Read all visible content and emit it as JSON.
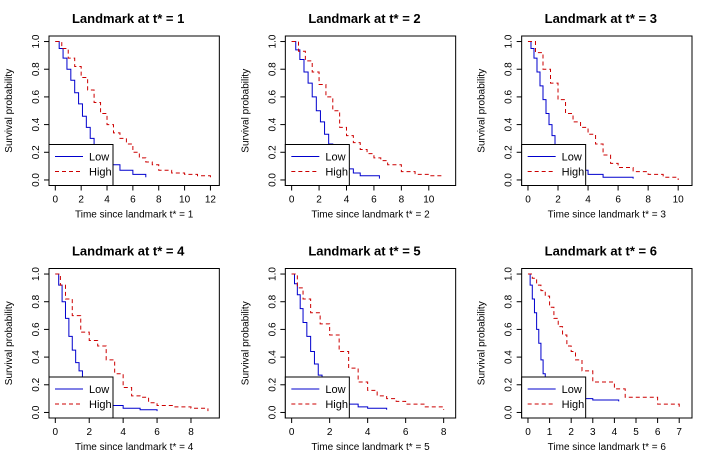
{
  "figure": {
    "legend_labels": [
      "Low",
      "High"
    ],
    "ylabel": "Survival probability"
  },
  "chart_data": [
    {
      "type": "line",
      "title": "Landmark at t* = 1",
      "xlabel": "Time since landmark t* = 1",
      "ylabel": "Survival probability",
      "xlim": [
        0,
        12.2
      ],
      "ylim": [
        0,
        1
      ],
      "xticks": [
        0,
        2,
        4,
        6,
        8,
        10,
        12
      ],
      "yticks": [
        0.0,
        0.2,
        0.4,
        0.6,
        0.8,
        1.0
      ],
      "legend": "bottom-left",
      "series": [
        {
          "name": "Low",
          "color": "#0000cd",
          "dash": "solid",
          "x": [
            0,
            0.3,
            0.6,
            0.9,
            1.2,
            1.5,
            1.8,
            2.1,
            2.4,
            2.7,
            3.0,
            3.3,
            3.6,
            3.9,
            4.2,
            5.0,
            6.0,
            7.0
          ],
          "y": [
            1.0,
            0.95,
            0.88,
            0.8,
            0.72,
            0.63,
            0.55,
            0.46,
            0.38,
            0.3,
            0.24,
            0.2,
            0.16,
            0.13,
            0.11,
            0.07,
            0.04,
            0.02
          ]
        },
        {
          "name": "High",
          "color": "#cc0000",
          "dash": "dashed",
          "x": [
            0,
            0.5,
            1.0,
            1.5,
            2.0,
            2.5,
            3.0,
            3.5,
            4.0,
            4.5,
            5.0,
            5.5,
            6.0,
            6.5,
            7.0,
            7.5,
            8.0,
            9.0,
            10.0,
            11.0,
            12.0
          ],
          "y": [
            1.0,
            0.95,
            0.88,
            0.82,
            0.74,
            0.65,
            0.56,
            0.48,
            0.4,
            0.34,
            0.3,
            0.26,
            0.2,
            0.16,
            0.13,
            0.11,
            0.07,
            0.05,
            0.04,
            0.03,
            0.02
          ]
        }
      ]
    },
    {
      "type": "line",
      "title": "Landmark at t* = 2",
      "xlabel": "Time since landmark t* = 2",
      "ylabel": "Survival probability",
      "xlim": [
        0,
        11.5
      ],
      "ylim": [
        0,
        1
      ],
      "xticks": [
        0,
        2,
        4,
        6,
        8,
        10
      ],
      "yticks": [
        0.0,
        0.2,
        0.4,
        0.6,
        0.8,
        1.0
      ],
      "legend": "bottom-left",
      "series": [
        {
          "name": "Low",
          "color": "#0000cd",
          "dash": "solid",
          "x": [
            0,
            0.3,
            0.6,
            0.9,
            1.2,
            1.5,
            1.8,
            2.1,
            2.4,
            2.7,
            3.0,
            3.3,
            3.6,
            4.0,
            4.5,
            5.0,
            6.4
          ],
          "y": [
            1.0,
            0.94,
            0.87,
            0.78,
            0.7,
            0.6,
            0.5,
            0.42,
            0.33,
            0.26,
            0.2,
            0.16,
            0.12,
            0.08,
            0.05,
            0.03,
            0.01
          ]
        },
        {
          "name": "High",
          "color": "#cc0000",
          "dash": "dashed",
          "x": [
            0,
            0.5,
            1.0,
            1.5,
            2.0,
            2.5,
            3.0,
            3.5,
            4.0,
            4.5,
            5.0,
            5.5,
            6.0,
            6.5,
            7.0,
            8.0,
            9.0,
            10.0,
            11.0
          ],
          "y": [
            1.0,
            0.93,
            0.86,
            0.78,
            0.69,
            0.6,
            0.5,
            0.38,
            0.32,
            0.27,
            0.22,
            0.19,
            0.16,
            0.14,
            0.11,
            0.06,
            0.04,
            0.03,
            0.02
          ]
        }
      ]
    },
    {
      "type": "line",
      "title": "Landmark at t* = 3",
      "xlabel": "Time since landmark t* = 3",
      "ylabel": "Survival probability",
      "xlim": [
        0,
        10.5
      ],
      "ylim": [
        0,
        1
      ],
      "xticks": [
        0,
        2,
        4,
        6,
        8,
        10
      ],
      "yticks": [
        0.0,
        0.2,
        0.4,
        0.6,
        0.8,
        1.0
      ],
      "legend": "bottom-left",
      "series": [
        {
          "name": "Low",
          "color": "#0000cd",
          "dash": "solid",
          "x": [
            0,
            0.2,
            0.4,
            0.6,
            0.8,
            1.0,
            1.2,
            1.4,
            1.6,
            1.8,
            2.0,
            2.3,
            2.6,
            3.0,
            4.0,
            5.0,
            7.0
          ],
          "y": [
            1.0,
            0.95,
            0.88,
            0.78,
            0.68,
            0.58,
            0.48,
            0.4,
            0.32,
            0.25,
            0.2,
            0.15,
            0.1,
            0.07,
            0.04,
            0.02,
            0.01
          ]
        },
        {
          "name": "High",
          "color": "#cc0000",
          "dash": "dashed",
          "x": [
            0,
            0.5,
            1.0,
            1.5,
            2.0,
            2.5,
            3.0,
            3.5,
            4.0,
            4.5,
            5.0,
            5.5,
            6.0,
            7.0,
            8.0,
            9.0,
            10.0
          ],
          "y": [
            1.0,
            0.92,
            0.8,
            0.7,
            0.58,
            0.48,
            0.42,
            0.38,
            0.33,
            0.26,
            0.18,
            0.12,
            0.09,
            0.06,
            0.04,
            0.02,
            0.0
          ]
        }
      ]
    },
    {
      "type": "line",
      "title": "Landmark at t* = 4",
      "xlabel": "Time since landmark t* = 4",
      "ylabel": "Survival probability",
      "xlim": [
        0,
        9.3
      ],
      "ylim": [
        0,
        1
      ],
      "xticks": [
        0,
        2,
        4,
        6,
        8
      ],
      "yticks": [
        0.0,
        0.2,
        0.4,
        0.6,
        0.8,
        1.0
      ],
      "legend": "bottom-left",
      "series": [
        {
          "name": "Low",
          "color": "#0000cd",
          "dash": "solid",
          "x": [
            0,
            0.2,
            0.4,
            0.6,
            0.8,
            1.0,
            1.2,
            1.4,
            1.6,
            1.8,
            2.0,
            2.3,
            2.6,
            3.0,
            4.0,
            5.0,
            6.0
          ],
          "y": [
            1.0,
            0.92,
            0.8,
            0.68,
            0.55,
            0.45,
            0.36,
            0.3,
            0.24,
            0.19,
            0.15,
            0.11,
            0.08,
            0.05,
            0.03,
            0.02,
            0.01
          ]
        },
        {
          "name": "High",
          "color": "#cc0000",
          "dash": "dashed",
          "x": [
            0,
            0.3,
            0.6,
            1.0,
            1.5,
            2.0,
            2.5,
            3.0,
            3.5,
            4.0,
            4.5,
            5.0,
            5.5,
            6.0,
            7.0,
            8.0,
            9.0
          ],
          "y": [
            1.0,
            0.92,
            0.82,
            0.7,
            0.58,
            0.52,
            0.48,
            0.38,
            0.28,
            0.18,
            0.12,
            0.11,
            0.07,
            0.05,
            0.04,
            0.03,
            0.01
          ]
        }
      ]
    },
    {
      "type": "line",
      "title": "Landmark at t* = 5",
      "xlabel": "Time since landmark t* = 5",
      "ylabel": "Survival probability",
      "xlim": [
        0,
        8.3
      ],
      "ylim": [
        0,
        1
      ],
      "xticks": [
        0,
        2,
        4,
        6,
        8
      ],
      "yticks": [
        0.0,
        0.2,
        0.4,
        0.6,
        0.8,
        1.0
      ],
      "legend": "bottom-left",
      "series": [
        {
          "name": "Low",
          "color": "#0000cd",
          "dash": "solid",
          "x": [
            0,
            0.15,
            0.3,
            0.45,
            0.6,
            0.8,
            1.0,
            1.2,
            1.4,
            1.6,
            1.8,
            2.0,
            2.5,
            3.0,
            3.5,
            4.0,
            5.0
          ],
          "y": [
            1.0,
            0.93,
            0.85,
            0.75,
            0.65,
            0.55,
            0.44,
            0.35,
            0.27,
            0.2,
            0.15,
            0.11,
            0.08,
            0.06,
            0.04,
            0.03,
            0.02
          ]
        },
        {
          "name": "High",
          "color": "#cc0000",
          "dash": "dashed",
          "x": [
            0,
            0.3,
            0.6,
            1.0,
            1.5,
            2.0,
            2.5,
            3.0,
            3.5,
            4.0,
            4.5,
            5.0,
            5.5,
            6.0,
            7.0,
            8.0
          ],
          "y": [
            1.0,
            0.9,
            0.82,
            0.72,
            0.64,
            0.56,
            0.44,
            0.32,
            0.22,
            0.16,
            0.12,
            0.1,
            0.08,
            0.06,
            0.04,
            0.02
          ]
        }
      ]
    },
    {
      "type": "line",
      "title": "Landmark at t* = 6",
      "xlabel": "Time since landmark t* = 6",
      "ylabel": "Survival probability",
      "xlim": [
        0,
        7.3
      ],
      "ylim": [
        0,
        1
      ],
      "xticks": [
        0,
        1,
        2,
        3,
        4,
        5,
        6,
        7
      ],
      "yticks": [
        0.0,
        0.2,
        0.4,
        0.6,
        0.8,
        1.0
      ],
      "legend": "bottom-left",
      "series": [
        {
          "name": "Low",
          "color": "#0000cd",
          "dash": "solid",
          "x": [
            0,
            0.1,
            0.2,
            0.3,
            0.4,
            0.5,
            0.6,
            0.7,
            0.8,
            1.0,
            1.2,
            2.0,
            3.0,
            4.2
          ],
          "y": [
            1.0,
            0.92,
            0.82,
            0.72,
            0.6,
            0.5,
            0.38,
            0.28,
            0.2,
            0.14,
            0.1,
            0.1,
            0.09,
            0.08
          ]
        },
        {
          "name": "High",
          "color": "#cc0000",
          "dash": "dashed",
          "x": [
            0,
            0.2,
            0.4,
            0.6,
            0.8,
            1.0,
            1.2,
            1.4,
            1.6,
            1.8,
            2.0,
            2.2,
            2.5,
            3.0,
            3.5,
            4.0,
            4.5,
            5.0,
            6.0,
            7.0
          ],
          "y": [
            1.0,
            0.97,
            0.92,
            0.88,
            0.84,
            0.76,
            0.68,
            0.62,
            0.56,
            0.48,
            0.44,
            0.38,
            0.3,
            0.22,
            0.22,
            0.17,
            0.11,
            0.11,
            0.06,
            0.02
          ]
        }
      ]
    }
  ]
}
